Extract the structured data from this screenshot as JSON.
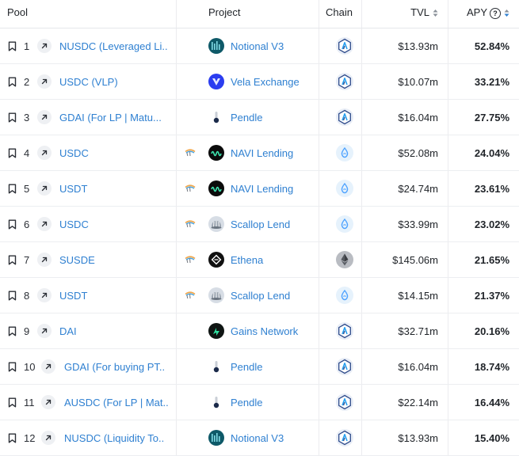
{
  "header": {
    "pool": "Pool",
    "project": "Project",
    "chain": "Chain",
    "tvl": "TVL",
    "apy": "APY",
    "apy_help": "?"
  },
  "colors": {
    "link": "#2f80d1",
    "sort_active": "#2f80d1",
    "arbitrum": "#2d4a8a",
    "sui": "#4da2ff"
  },
  "rows": [
    {
      "rank": "1",
      "pool": "NUSDC (Leveraged Li..",
      "project": "Notional V3",
      "project_icon": "notional-logo",
      "chain_icon": "arbitrum-logo",
      "bridge": false,
      "tvl": "$13.93m",
      "apy": "52.84%"
    },
    {
      "rank": "2",
      "pool": "USDC (VLP)",
      "project": "Vela Exchange",
      "project_icon": "vela-logo",
      "chain_icon": "arbitrum-logo",
      "bridge": false,
      "tvl": "$10.07m",
      "apy": "33.21%"
    },
    {
      "rank": "3",
      "pool": "GDAI (For LP | Matu...",
      "project": "Pendle",
      "project_icon": "pendle-logo",
      "chain_icon": "arbitrum-logo",
      "bridge": false,
      "tvl": "$16.04m",
      "apy": "27.75%"
    },
    {
      "rank": "4",
      "pool": "USDC",
      "project": "NAVI Lending",
      "project_icon": "navi-logo",
      "chain_icon": "sui-logo",
      "bridge": true,
      "tvl": "$52.08m",
      "apy": "24.04%"
    },
    {
      "rank": "5",
      "pool": "USDT",
      "project": "NAVI Lending",
      "project_icon": "navi-logo",
      "chain_icon": "sui-logo",
      "bridge": true,
      "tvl": "$24.74m",
      "apy": "23.61%"
    },
    {
      "rank": "6",
      "pool": "USDC",
      "project": "Scallop Lend",
      "project_icon": "scallop-logo",
      "chain_icon": "sui-logo",
      "bridge": true,
      "tvl": "$33.99m",
      "apy": "23.02%"
    },
    {
      "rank": "7",
      "pool": "SUSDE",
      "project": "Ethena",
      "project_icon": "ethena-logo",
      "chain_icon": "ethereum-logo",
      "bridge": true,
      "tvl": "$145.06m",
      "apy": "21.65%"
    },
    {
      "rank": "8",
      "pool": "USDT",
      "project": "Scallop Lend",
      "project_icon": "scallop-logo",
      "chain_icon": "sui-logo",
      "bridge": true,
      "tvl": "$14.15m",
      "apy": "21.37%"
    },
    {
      "rank": "9",
      "pool": "DAI",
      "project": "Gains Network",
      "project_icon": "gains-logo",
      "chain_icon": "arbitrum-logo",
      "bridge": false,
      "tvl": "$32.71m",
      "apy": "20.16%"
    },
    {
      "rank": "10",
      "pool": "GDAI (For buying PT..",
      "project": "Pendle",
      "project_icon": "pendle-logo",
      "chain_icon": "arbitrum-logo",
      "bridge": false,
      "tvl": "$16.04m",
      "apy": "18.74%"
    },
    {
      "rank": "11",
      "pool": "AUSDC (For LP | Mat..",
      "project": "Pendle",
      "project_icon": "pendle-logo",
      "chain_icon": "arbitrum-logo",
      "bridge": false,
      "tvl": "$22.14m",
      "apy": "16.44%"
    },
    {
      "rank": "12",
      "pool": "NUSDC (Liquidity To..",
      "project": "Notional V3",
      "project_icon": "notional-logo",
      "chain_icon": "arbitrum-logo",
      "bridge": false,
      "tvl": "$13.93m",
      "apy": "15.40%"
    }
  ]
}
